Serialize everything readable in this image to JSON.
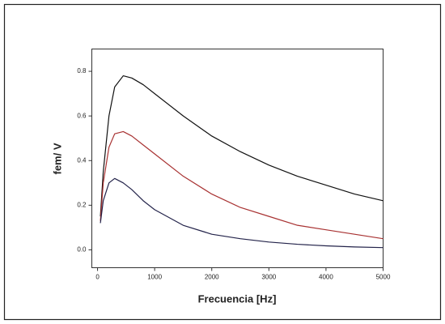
{
  "chart_data": {
    "type": "line",
    "x_label": "Frecuencia [Hz]",
    "y_label": "fem/ V",
    "x": [
      50,
      100,
      200,
      300,
      450,
      600,
      800,
      1000,
      1500,
      2000,
      2500,
      3000,
      3500,
      4000,
      4500,
      5000
    ],
    "series": [
      {
        "color": "#111111",
        "values": [
          0.15,
          0.35,
          0.6,
          0.73,
          0.78,
          0.77,
          0.74,
          0.7,
          0.6,
          0.51,
          0.44,
          0.38,
          0.33,
          0.29,
          0.25,
          0.22
        ]
      },
      {
        "color": "#a83232",
        "values": [
          0.13,
          0.3,
          0.46,
          0.52,
          0.53,
          0.51,
          0.47,
          0.43,
          0.33,
          0.25,
          0.19,
          0.15,
          0.11,
          0.09,
          0.07,
          0.05
        ]
      },
      {
        "color": "#23234a",
        "values": [
          0.12,
          0.22,
          0.3,
          0.32,
          0.3,
          0.27,
          0.22,
          0.18,
          0.11,
          0.07,
          0.05,
          0.035,
          0.025,
          0.018,
          0.013,
          0.01
        ]
      }
    ],
    "xlim": [
      -100,
      5000
    ],
    "xticks": [
      0,
      1000,
      2000,
      3000,
      4000,
      5000
    ],
    "ylim": [
      -0.08,
      0.9
    ],
    "yticks": [
      {
        "value": 0,
        "label": "0.0"
      },
      0.2,
      0.4,
      0.6,
      0.8
    ],
    "grid": false
  }
}
